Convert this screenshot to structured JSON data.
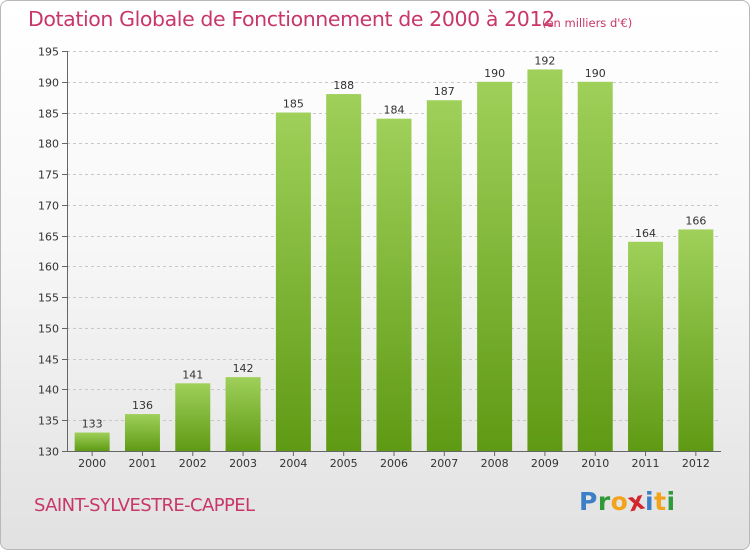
{
  "chart_data": {
    "type": "bar",
    "title": "Dotation Globale de Fonctionnement de 2000 à 2012",
    "unit_note": "(en milliers d'€)",
    "categories": [
      "2000",
      "2001",
      "2002",
      "2003",
      "2004",
      "2005",
      "2006",
      "2007",
      "2008",
      "2009",
      "2010",
      "2011",
      "2012"
    ],
    "values": [
      133,
      136,
      141,
      142,
      185,
      188,
      184,
      187,
      190,
      192,
      190,
      164,
      166
    ],
    "ylim": [
      130,
      195
    ],
    "yticks": [
      130,
      135,
      140,
      145,
      150,
      155,
      160,
      165,
      170,
      175,
      180,
      185,
      190,
      195
    ],
    "xlabel": "",
    "ylabel": "",
    "grid": "horizontal dashed",
    "bar_color_top": "#9fd05a",
    "bar_color_bottom": "#5f9a14"
  },
  "footer": {
    "town": "SAINT-SYLVESTRE-CAPPEL",
    "logo_letters": [
      {
        "ch": "P",
        "color": "#3d7fc7"
      },
      {
        "ch": "r",
        "color": "#2f9a3a"
      },
      {
        "ch": "o",
        "color": "#f2a31b"
      },
      {
        "ch": "x",
        "color": "#d2262e"
      },
      {
        "ch": "i",
        "color": "#3d7fc7"
      },
      {
        "ch": "t",
        "color": "#f2a31b"
      },
      {
        "ch": "i",
        "color": "#2f9a3a"
      }
    ]
  }
}
